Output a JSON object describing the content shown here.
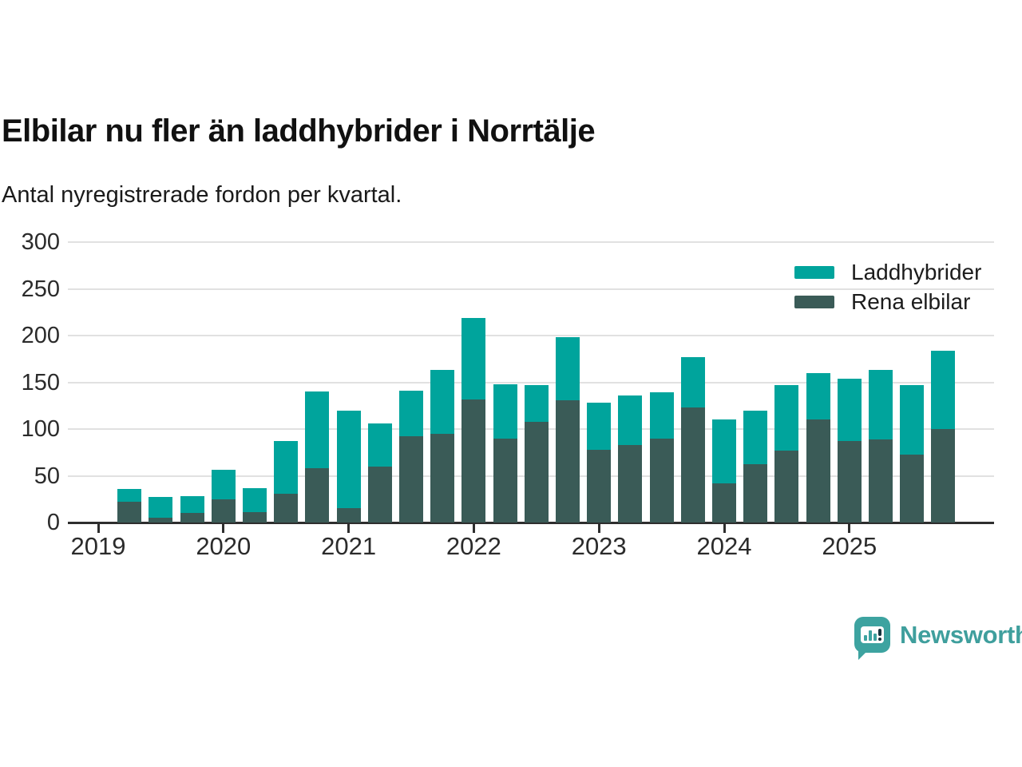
{
  "header": {
    "title": "Elbilar nu fler än laddhybrider i Norrtälje",
    "subtitle": "Antal nyregistrerade fordon per kvartal."
  },
  "legend": {
    "items": [
      {
        "label": "Laddhybrider",
        "color": "#00a49c"
      },
      {
        "label": "Rena elbilar",
        "color": "#3a5b57"
      }
    ]
  },
  "logo": {
    "text": "Newsworthy",
    "mark_color": "#3da3a0",
    "text_color": "#3f9f9d"
  },
  "colors": {
    "background": "#ffffff",
    "grid": "#e1e1e1",
    "axis": "#2e2e2e",
    "text": "#2b2b2b"
  },
  "chart_data": {
    "type": "bar",
    "stacked": true,
    "title": "Elbilar nu fler än laddhybrider i Norrtälje",
    "subtitle": "Antal nyregistrerade fordon per kvartal.",
    "xlabel": "",
    "ylabel": "",
    "ylim": [
      0,
      300
    ],
    "yticks": [
      0,
      50,
      100,
      150,
      200,
      250,
      300
    ],
    "grid": true,
    "legend_position": "top-right",
    "x_tick_labels": [
      "2019",
      "2020",
      "2021",
      "2022",
      "2023",
      "2024",
      "2025"
    ],
    "categories": [
      "2019 Q2",
      "2019 Q3",
      "2019 Q4",
      "2020 Q1",
      "2020 Q2",
      "2020 Q3",
      "2020 Q4",
      "2021 Q1",
      "2021 Q2",
      "2021 Q3",
      "2021 Q4",
      "2022 Q1",
      "2022 Q2",
      "2022 Q3",
      "2022 Q4",
      "2023 Q1",
      "2023 Q2",
      "2023 Q3",
      "2023 Q4",
      "2024 Q1",
      "2024 Q2",
      "2024 Q3",
      "2024 Q4",
      "2025 Q1",
      "2025 Q2",
      "2025 Q3",
      "2025 Q4"
    ],
    "series": [
      {
        "name": "Laddhybrider",
        "color": "#00a49c",
        "stack_position": "top",
        "values": [
          14,
          22,
          18,
          31,
          26,
          56,
          82,
          105,
          46,
          49,
          68,
          87,
          58,
          39,
          67,
          50,
          53,
          49,
          54,
          68,
          58,
          70,
          50,
          67,
          74,
          74,
          84
        ]
      },
      {
        "name": "Rena elbilar",
        "color": "#3a5b57",
        "stack_position": "bottom",
        "values": [
          22,
          5,
          10,
          25,
          11,
          31,
          58,
          15,
          60,
          92,
          95,
          132,
          90,
          108,
          131,
          78,
          83,
          90,
          123,
          42,
          62,
          77,
          110,
          87,
          89,
          73,
          100
        ]
      }
    ],
    "stacked_totals": [
      36,
      27,
      28,
      56,
      37,
      87,
      140,
      120,
      106,
      141,
      163,
      219,
      148,
      147,
      198,
      128,
      136,
      139,
      177,
      110,
      120,
      147,
      160,
      154,
      163,
      147,
      184
    ]
  }
}
